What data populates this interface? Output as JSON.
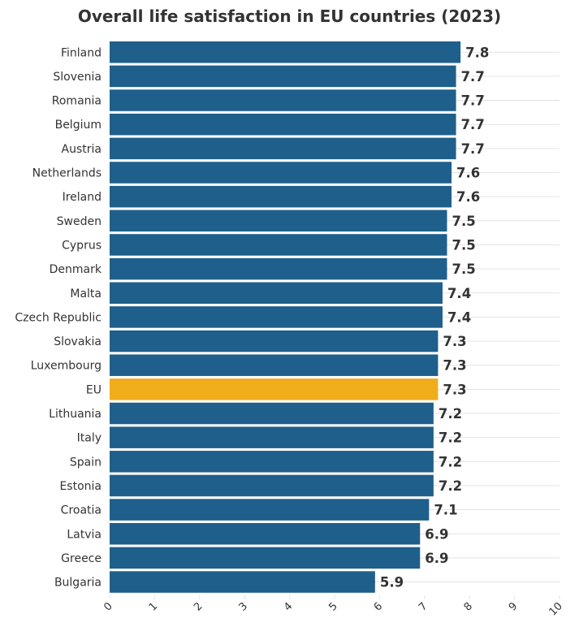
{
  "chart_data": {
    "type": "bar",
    "orientation": "horizontal",
    "title": "Overall life satisfaction in EU countries (2023)",
    "xlabel": "",
    "ylabel": "",
    "xlim": [
      0,
      10
    ],
    "x_ticks": [
      "0",
      "1",
      "2",
      "3",
      "4",
      "5",
      "6",
      "7",
      "8",
      "9",
      "10"
    ],
    "grid": true,
    "categories": [
      "Finland",
      "Slovenia",
      "Romania",
      "Belgium",
      "Austria",
      "Netherlands",
      "Ireland",
      "Sweden",
      "Cyprus",
      "Denmark",
      "Malta",
      "Czech Republic",
      "Slovakia",
      "Luxembourg",
      "EU",
      "Lithuania",
      "Italy",
      "Spain",
      "Estonia",
      "Croatia",
      "Latvia",
      "Greece",
      "Bulgaria"
    ],
    "values": [
      7.8,
      7.7,
      7.7,
      7.7,
      7.7,
      7.6,
      7.6,
      7.5,
      7.5,
      7.5,
      7.4,
      7.4,
      7.3,
      7.3,
      7.3,
      7.2,
      7.2,
      7.2,
      7.2,
      7.1,
      6.9,
      6.9,
      5.9
    ],
    "value_labels": [
      "7.8",
      "7.7",
      "7.7",
      "7.7",
      "7.7",
      "7.6",
      "7.6",
      "7.5",
      "7.5",
      "7.5",
      "7.4",
      "7.4",
      "7.3",
      "7.3",
      "7.3",
      "7.2",
      "7.2",
      "7.2",
      "7.2",
      "7.1",
      "6.9",
      "6.9",
      "5.9"
    ],
    "highlight_category": "EU",
    "colors": {
      "bar": "#1f5f8b",
      "highlight": "#f0ad1c",
      "grid": "#e3e3e3",
      "text": "#333333"
    }
  }
}
